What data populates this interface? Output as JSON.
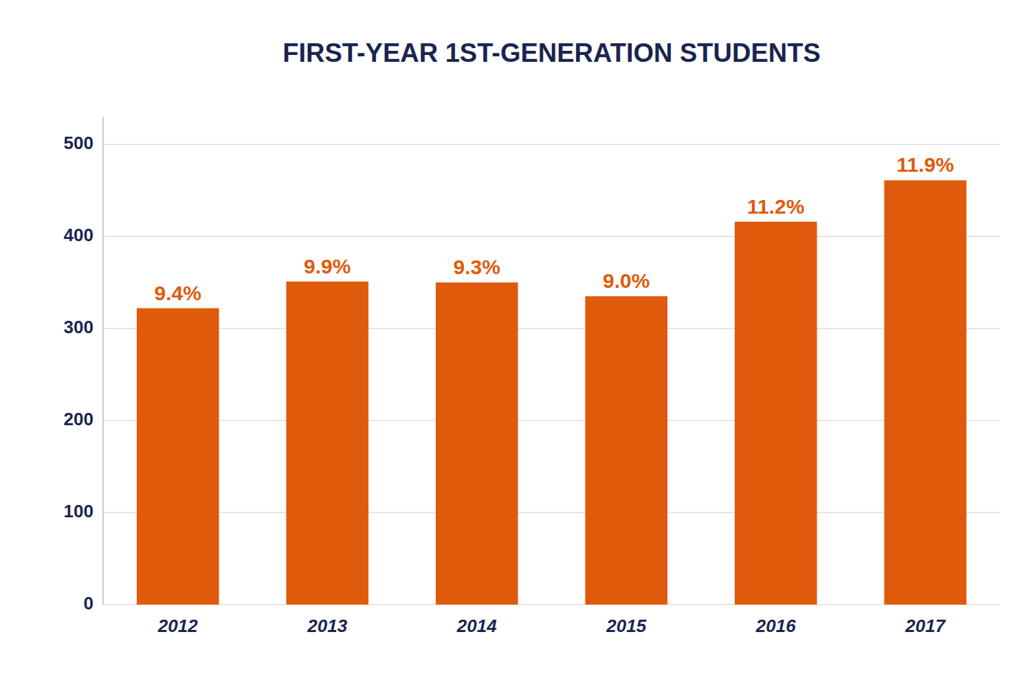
{
  "chart_data": {
    "type": "bar",
    "title": "FIRST-YEAR 1ST-GENERATION STUDENTS",
    "categories": [
      "2012",
      "2013",
      "2014",
      "2015",
      "2016",
      "2017"
    ],
    "values": [
      322,
      351,
      350,
      335,
      416,
      461
    ],
    "annotations": [
      "9.4%",
      "9.9%",
      "9.3%",
      "9.0%",
      "11.2%",
      "11.9%"
    ],
    "color": "#E05A0C",
    "ylim": [
      0,
      530
    ],
    "yticks": [
      0,
      100,
      200,
      300,
      400,
      500
    ],
    "grid": true
  }
}
